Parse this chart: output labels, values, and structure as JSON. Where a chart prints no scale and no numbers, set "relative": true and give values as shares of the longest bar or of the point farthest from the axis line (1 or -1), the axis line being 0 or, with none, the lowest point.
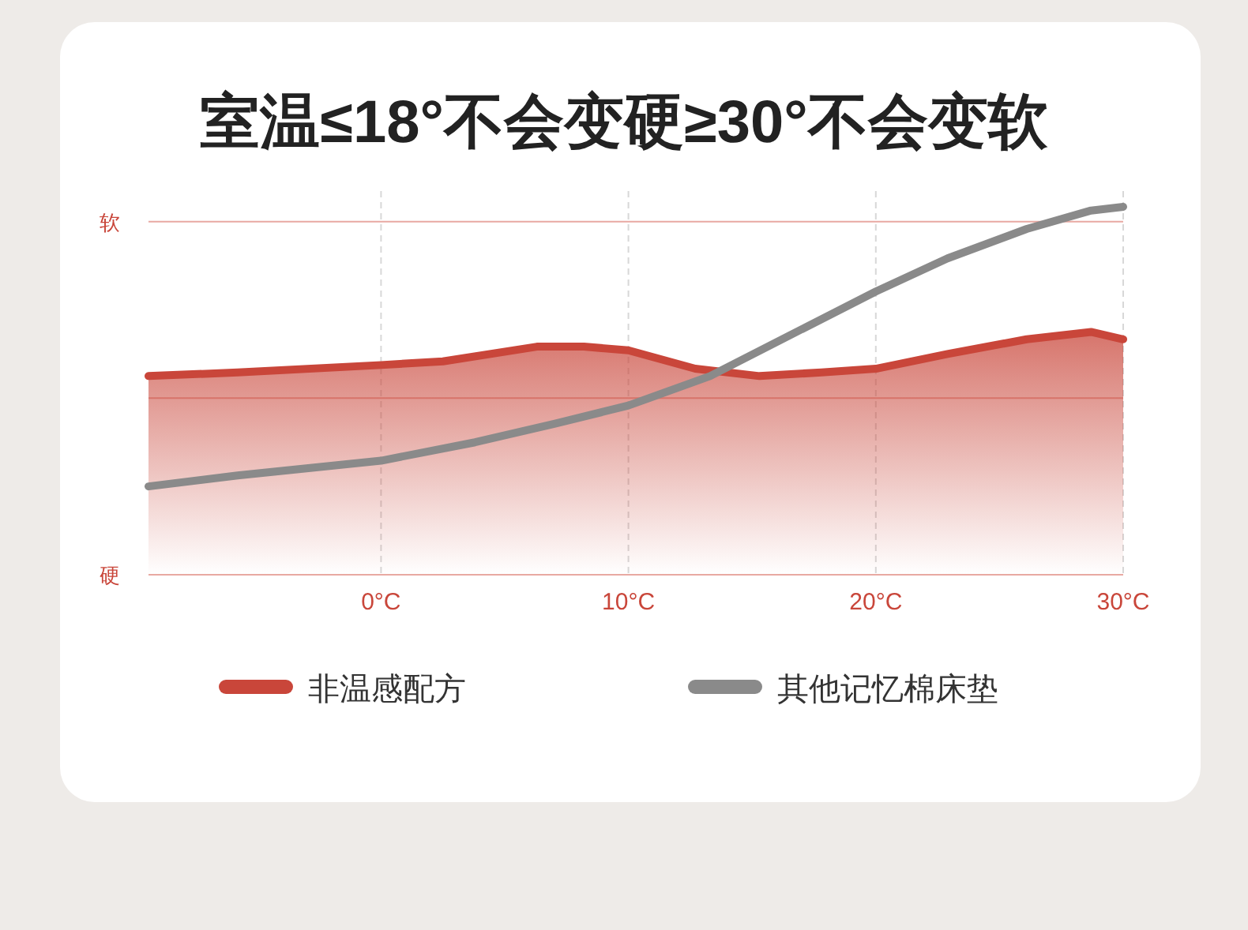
{
  "chart_data": {
    "type": "line",
    "title": "室温≤18°不会变硬≥30°不会变软",
    "relative": true,
    "xlim": [
      -9.4,
      30
    ],
    "xticks": [
      {
        "value": 0,
        "label": "0°C"
      },
      {
        "value": 10,
        "label": "10°C"
      },
      {
        "value": 20,
        "label": "20°C"
      },
      {
        "value": 30,
        "label": "30°C"
      }
    ],
    "grid": "x",
    "legend": "bottom",
    "tick_labels": "x",
    "ref_lines": [
      {
        "axis": "y",
        "value": 0.96,
        "label": "软",
        "color": "#e8a9a2"
      },
      {
        "axis": "y",
        "value": 0.48,
        "color": "#e8a9a2"
      },
      {
        "axis": "y",
        "value": 0,
        "label": "硬",
        "color": "#e8a9a2"
      }
    ],
    "series": [
      {
        "name": "非温感配方",
        "type": "area",
        "color": "#c9463a",
        "x": [
          -9.4,
          -5.8,
          0,
          2.5,
          6.3,
          8.2,
          10,
          12.7,
          15.3,
          17.8,
          20,
          22.9,
          26.1,
          28.7,
          30
        ],
        "values": [
          0.54,
          0.55,
          0.57,
          0.58,
          0.62,
          0.62,
          0.61,
          0.56,
          0.54,
          0.55,
          0.56,
          0.6,
          0.64,
          0.66,
          0.64
        ]
      },
      {
        "name": "其他记忆棉床垫",
        "type": "line",
        "color": "#8a8a8a",
        "x": [
          -9.4,
          -5.8,
          0,
          3.8,
          7,
          10,
          13.3,
          16.5,
          20,
          22.9,
          26.1,
          28.7,
          30
        ],
        "values": [
          0.24,
          0.27,
          0.31,
          0.36,
          0.41,
          0.46,
          0.54,
          0.65,
          0.77,
          0.86,
          0.94,
          0.99,
          1.0
        ]
      }
    ]
  }
}
